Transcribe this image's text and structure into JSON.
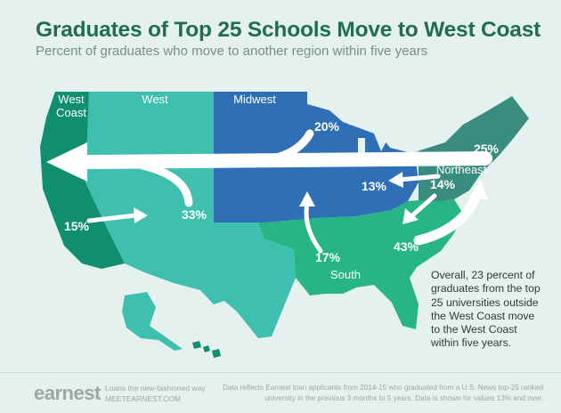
{
  "title": "Graduates of Top 25 Schools Move to West Coast",
  "subtitle": "Percent of graduates who move to another region within five years",
  "regions": {
    "west_coast": "West Coast",
    "west": "West",
    "midwest": "Midwest",
    "northeast": "Northeast",
    "south": "South"
  },
  "flows": {
    "midwest_to_west_coast": "20%",
    "northeast_to_west_coast": "25%",
    "west_to_west_coast": "33%",
    "west_coast_to_west": "15%",
    "northeast_to_midwest": "13%",
    "northeast_to_south": "14%",
    "south_to_midwest": "17%",
    "south_to_northeast": "43%"
  },
  "note": "Overall, 23 percent of graduates from the top 25 universities outside the West Coast move to the West Coast within five years.",
  "footer": {
    "logo": "earnest",
    "tagline_line1": "Loans the new-fashioned way",
    "tagline_line2": "MEETEARNEST.COM",
    "disclaimer": "Data reflects Earnest loan applicants from 2014-15 who graduated from a U.S. News top-25 ranked university in the previous 3 months to 5 years. Data is shown for values 13% and over."
  },
  "colors": {
    "west_coast": "#0f8f6e",
    "west": "#3fbfae",
    "midwest": "#2f6fb5",
    "northeast": "#3a8c7e",
    "south": "#27b585",
    "background": "#e4f1ee",
    "title": "#1f6e52"
  }
}
